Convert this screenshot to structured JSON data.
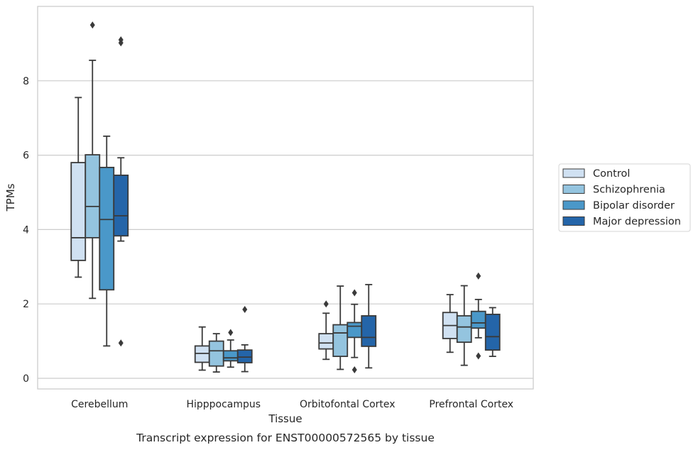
{
  "chart_data": {
    "type": "box",
    "caption": "Transcript expression for ENST00000572565 by tissue",
    "xlabel": "Tissue",
    "ylabel": "TPMs",
    "ylim": [
      -0.28,
      9.8
    ],
    "yticks": [
      0,
      2,
      4,
      6,
      8
    ],
    "grid": "horizontal",
    "legend_position": "right",
    "categories": [
      "Cerebellum",
      "Hipppocampus",
      "Orbitofontal Cortex",
      "Prefrontal Cortex"
    ],
    "series": [
      {
        "name": "Control",
        "color": "#d0e1f2",
        "boxes": [
          {
            "whisker_low": 2.72,
            "q1": 3.17,
            "median": 3.78,
            "q3": 5.8,
            "whisker_high": 7.55,
            "outliers": []
          },
          {
            "whisker_low": 0.22,
            "q1": 0.43,
            "median": 0.67,
            "q3": 0.87,
            "whisker_high": 1.38,
            "outliers": []
          },
          {
            "whisker_low": 0.51,
            "q1": 0.79,
            "median": 0.95,
            "q3": 1.2,
            "whisker_high": 1.75,
            "outliers": [
              2.0
            ]
          },
          {
            "whisker_low": 0.7,
            "q1": 1.07,
            "median": 1.42,
            "q3": 1.77,
            "whisker_high": 2.25,
            "outliers": []
          }
        ]
      },
      {
        "name": "Schizophrenia",
        "color": "#94c4df",
        "boxes": [
          {
            "whisker_low": 2.15,
            "q1": 3.78,
            "median": 4.62,
            "q3": 6.01,
            "whisker_high": 8.55,
            "outliers": [
              9.5
            ]
          },
          {
            "whisker_low": 0.17,
            "q1": 0.33,
            "median": 0.74,
            "q3": 1.0,
            "whisker_high": 1.2,
            "outliers": []
          },
          {
            "whisker_low": 0.24,
            "q1": 0.59,
            "median": 1.22,
            "q3": 1.44,
            "whisker_high": 2.48,
            "outliers": []
          },
          {
            "whisker_low": 0.35,
            "q1": 0.97,
            "median": 1.38,
            "q3": 1.68,
            "whisker_high": 2.49,
            "outliers": []
          }
        ]
      },
      {
        "name": "Bipolar disorder",
        "color": "#4a98c9",
        "boxes": [
          {
            "whisker_low": 0.87,
            "q1": 2.38,
            "median": 4.27,
            "q3": 5.67,
            "whisker_high": 6.51,
            "outliers": []
          },
          {
            "whisker_low": 0.3,
            "q1": 0.47,
            "median": 0.55,
            "q3": 0.74,
            "whisker_high": 1.03,
            "outliers": [
              1.23
            ]
          },
          {
            "whisker_low": 0.56,
            "q1": 1.1,
            "median": 1.4,
            "q3": 1.5,
            "whisker_high": 1.99,
            "outliers": [
              2.3,
              0.23
            ]
          },
          {
            "whisker_low": 1.09,
            "q1": 1.35,
            "median": 1.49,
            "q3": 1.8,
            "whisker_high": 2.12,
            "outliers": [
              2.75,
              0.6
            ]
          }
        ]
      },
      {
        "name": "Major depression",
        "color": "#2465a9",
        "boxes": [
          {
            "whisker_low": 3.69,
            "q1": 3.83,
            "median": 4.37,
            "q3": 5.46,
            "whisker_high": 5.93,
            "outliers": [
              9.1,
              9.02,
              0.95
            ]
          },
          {
            "whisker_low": 0.18,
            "q1": 0.42,
            "median": 0.57,
            "q3": 0.76,
            "whisker_high": 0.9,
            "outliers": [
              1.85
            ]
          },
          {
            "whisker_low": 0.28,
            "q1": 0.86,
            "median": 1.1,
            "q3": 1.68,
            "whisker_high": 2.52,
            "outliers": []
          },
          {
            "whisker_low": 0.59,
            "q1": 0.76,
            "median": 1.12,
            "q3": 1.72,
            "whisker_high": 1.9,
            "outliers": []
          }
        ]
      }
    ]
  }
}
